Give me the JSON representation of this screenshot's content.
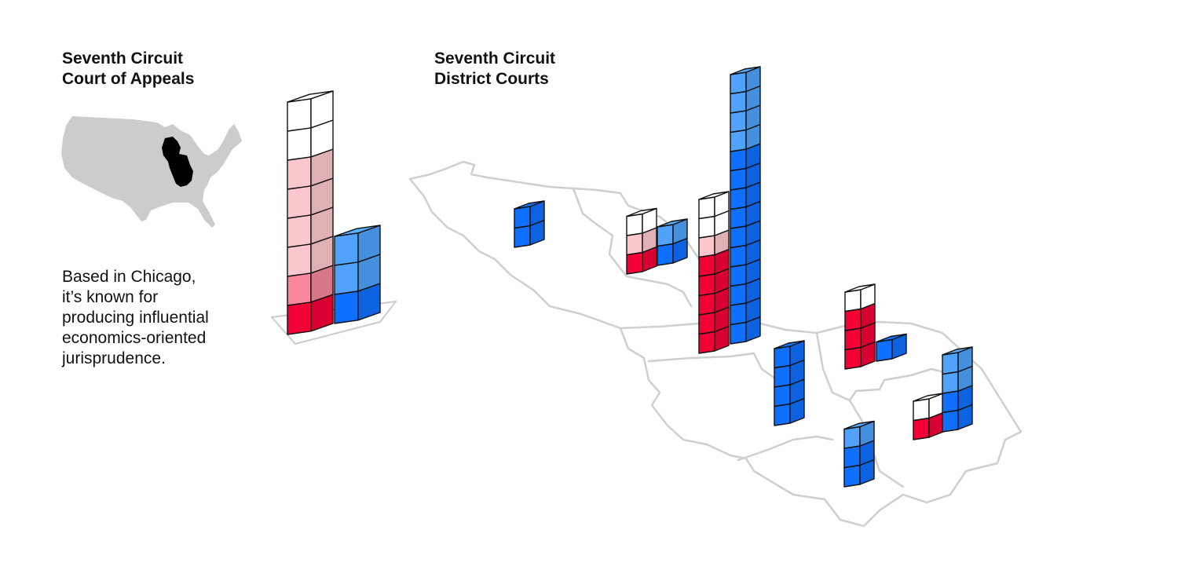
{
  "appeals": {
    "title_line1": "Seventh Circuit",
    "title_line2": "Court of Appeals",
    "description_lines": [
      "Based in Chicago,",
      "it’s known for",
      "producing influential",
      "economics-oriented",
      "jurisprudence."
    ]
  },
  "district": {
    "title_line1": "Seventh Circuit",
    "title_line2": "District Courts"
  },
  "colors": {
    "red": "#f50036",
    "medium_red": "#f8869c",
    "light_red": "#fdc8cd",
    "white": "#ffffff",
    "blue": "#0f6fff",
    "light_blue": "#50a2fb",
    "map_gray": "#cccccc",
    "region_black": "#000000",
    "outline_gray": "#cfcfcf"
  },
  "icons": {
    "locator_map": "us-map-icon"
  },
  "chart_data": [
    {
      "type": "stacked-cube-bar",
      "court": "Court of Appeals",
      "stacks": [
        {
          "segments": [
            "red",
            "medium_red",
            "light_red",
            "light_red",
            "light_red",
            "light_red",
            "white",
            "white"
          ]
        },
        {
          "segments": [
            "blue",
            "light_blue",
            "light_blue"
          ]
        }
      ]
    },
    {
      "type": "stacked-cube-bar-map",
      "court": "District Courts",
      "stacks": [
        {
          "segments": [
            "blue",
            "blue"
          ]
        },
        {
          "segments": [
            "red",
            "light_red",
            "white"
          ]
        },
        {
          "segments": [
            "blue",
            "light_blue"
          ]
        },
        {
          "segments": [
            "red",
            "red",
            "red",
            "red",
            "red",
            "light_red",
            "white",
            "white"
          ]
        },
        {
          "segments": [
            "blue",
            "blue",
            "blue",
            "blue",
            "blue",
            "blue",
            "blue",
            "blue",
            "blue",
            "blue",
            "light_blue",
            "light_blue",
            "light_blue",
            "light_blue"
          ]
        },
        {
          "segments": [
            "red",
            "red",
            "red",
            "white"
          ]
        },
        {
          "segments": [
            "blue"
          ]
        },
        {
          "segments": [
            "blue",
            "blue",
            "blue",
            "blue"
          ]
        },
        {
          "segments": [
            "red",
            "white"
          ]
        },
        {
          "segments": [
            "blue",
            "blue",
            "light_blue"
          ]
        },
        {
          "segments": [
            "blue",
            "blue",
            "light_blue",
            "light_blue"
          ]
        }
      ]
    }
  ]
}
